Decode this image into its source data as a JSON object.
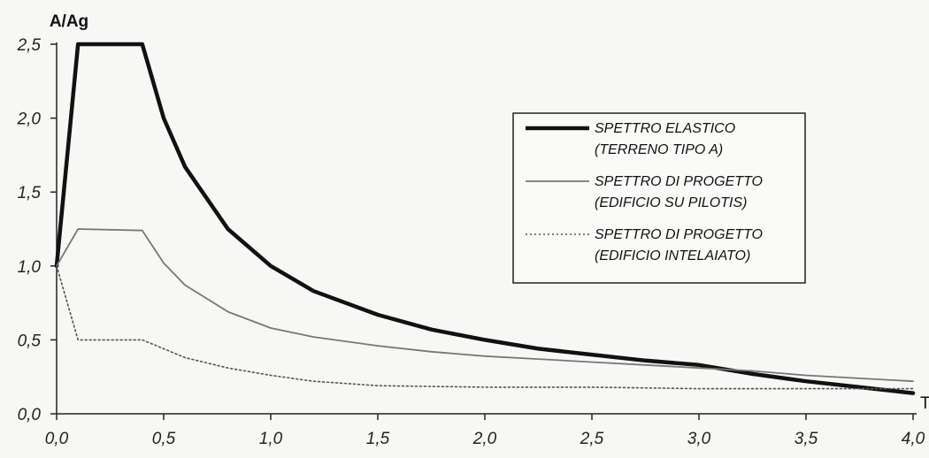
{
  "chart_data": {
    "type": "line",
    "ylabel": "A/Ag",
    "xlabel": "T",
    "xlim": [
      0.0,
      4.0
    ],
    "ylim": [
      0.0,
      2.5
    ],
    "x_ticks": [
      "0,0",
      "0,5",
      "1,0",
      "1,5",
      "2,0",
      "2,5",
      "3,0",
      "3,5",
      "4,0"
    ],
    "y_ticks": [
      "0,0",
      "0,5",
      "1,0",
      "1,5",
      "2,0",
      "2,5"
    ],
    "grid": false,
    "legend_position": "right",
    "series": [
      {
        "name_lines": [
          "SPETTRO ELASTICO",
          "(TERRENO TIPO A)"
        ],
        "style": "thick",
        "color": "#111111",
        "x": [
          0.0,
          0.1,
          0.4,
          0.5,
          0.6,
          0.8,
          1.0,
          1.2,
          1.5,
          1.75,
          2.0,
          2.25,
          2.5,
          2.75,
          3.0,
          3.25,
          3.5,
          3.75,
          4.0
        ],
        "y": [
          1.0,
          2.5,
          2.5,
          2.0,
          1.67,
          1.25,
          1.0,
          0.83,
          0.67,
          0.57,
          0.5,
          0.44,
          0.4,
          0.36,
          0.33,
          0.27,
          0.22,
          0.18,
          0.14
        ]
      },
      {
        "name_lines": [
          "SPETTRO DI PROGETTO",
          "(EDIFICIO SU PILOTIS)"
        ],
        "style": "thin",
        "color": "#777777",
        "x": [
          0.0,
          0.1,
          0.4,
          0.5,
          0.6,
          0.8,
          1.0,
          1.2,
          1.5,
          1.75,
          2.0,
          2.25,
          2.5,
          2.75,
          3.0,
          3.25,
          3.5,
          3.75,
          4.0
        ],
        "y": [
          1.0,
          1.25,
          1.24,
          1.02,
          0.87,
          0.69,
          0.58,
          0.52,
          0.46,
          0.42,
          0.39,
          0.37,
          0.35,
          0.33,
          0.31,
          0.29,
          0.26,
          0.24,
          0.22
        ]
      },
      {
        "name_lines": [
          "SPETTRO DI PROGETTO",
          "(EDIFICIO INTELAIATO)"
        ],
        "style": "dotted",
        "color": "#555555",
        "x": [
          0.0,
          0.1,
          0.4,
          0.6,
          0.8,
          1.0,
          1.2,
          1.5,
          2.0,
          2.5,
          3.0,
          3.5,
          4.0
        ],
        "y": [
          1.0,
          0.5,
          0.5,
          0.38,
          0.31,
          0.26,
          0.22,
          0.19,
          0.18,
          0.18,
          0.17,
          0.17,
          0.17
        ]
      }
    ]
  }
}
